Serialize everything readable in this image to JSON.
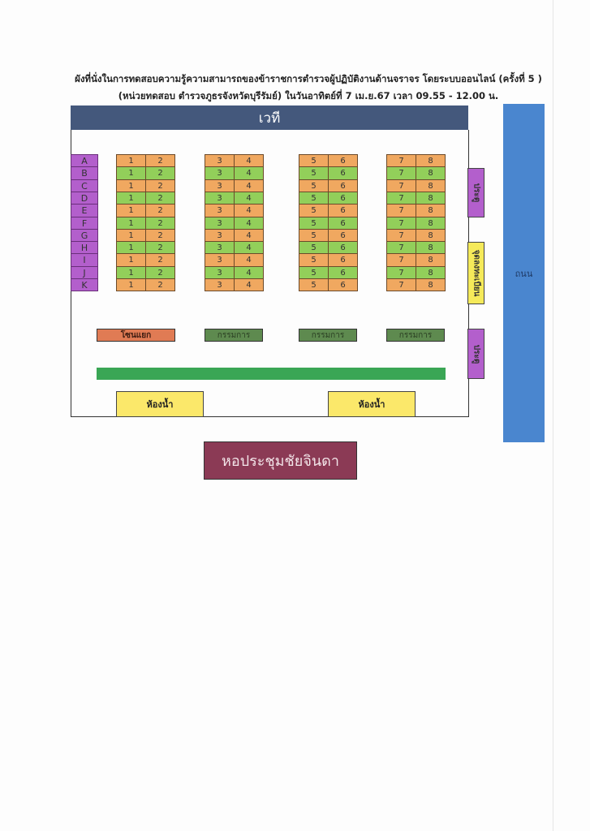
{
  "title": {
    "line1": "ผังที่นั่งในการทดสอบความรู้ความสามารถของข้าราชการตำรวจผู้ปฏิบัติงานด้านจราจร โดยระบบออนไลน์ (ครั้งที่ 5 )",
    "line2": "(หน่วยทดสอบ ตำรวจภูธรจังหวัดบุรีรัมย์) ในวันอาทิตย์ที่ 7 เม.ย.67  เวลา 09.55 - 12.00 น."
  },
  "stage": "เวที",
  "road": "ถนน",
  "rows": [
    "A",
    "B",
    "C",
    "D",
    "E",
    "F",
    "G",
    "H",
    "I",
    "J",
    "K"
  ],
  "seat_blocks": [
    [
      "1",
      "2"
    ],
    [
      "3",
      "4"
    ],
    [
      "5",
      "6"
    ],
    [
      "7",
      "8"
    ]
  ],
  "colors": {
    "odd_row": "#f0a860",
    "even_row": "#92cf5a",
    "row_label": "#b35fcc",
    "stage": "#44587c",
    "road": "#4a86cf"
  },
  "side": {
    "door_top": "ประตู",
    "registration": "จุดลงทะเบียน",
    "door_bottom": "ประตู"
  },
  "zone": "โซนแยก",
  "committee": [
    "กรรมการ",
    "กรรมการ",
    "กรรมการ"
  ],
  "toilets": [
    "ห้องน้ำ",
    "ห้องน้ำ"
  ],
  "hall": "หอประชุมชัยจินดา"
}
